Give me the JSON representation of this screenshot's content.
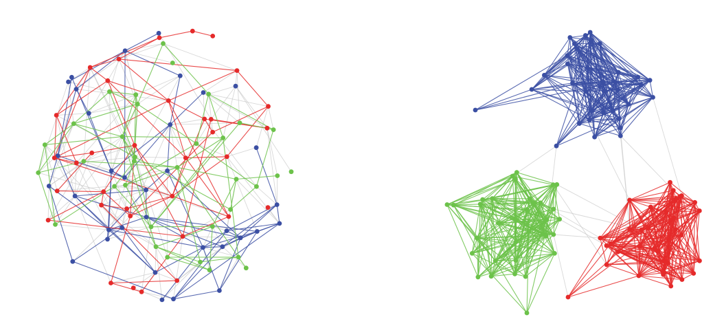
{
  "colors": {
    "red": "#e52a2a",
    "green": "#6cc24a",
    "blue": "#3b4fa3",
    "grey": "#c8c8c8"
  },
  "panels": [
    {
      "name": "panel-left",
      "layout": "mixed",
      "groups": [
        "blue",
        "red",
        "green"
      ],
      "nodes_per_group": 34,
      "seed": 7
    },
    {
      "name": "panel-right",
      "layout": "clustered",
      "groups": [
        "blue",
        "green",
        "red"
      ],
      "nodes_per_group": 34,
      "seed": 13
    }
  ]
}
